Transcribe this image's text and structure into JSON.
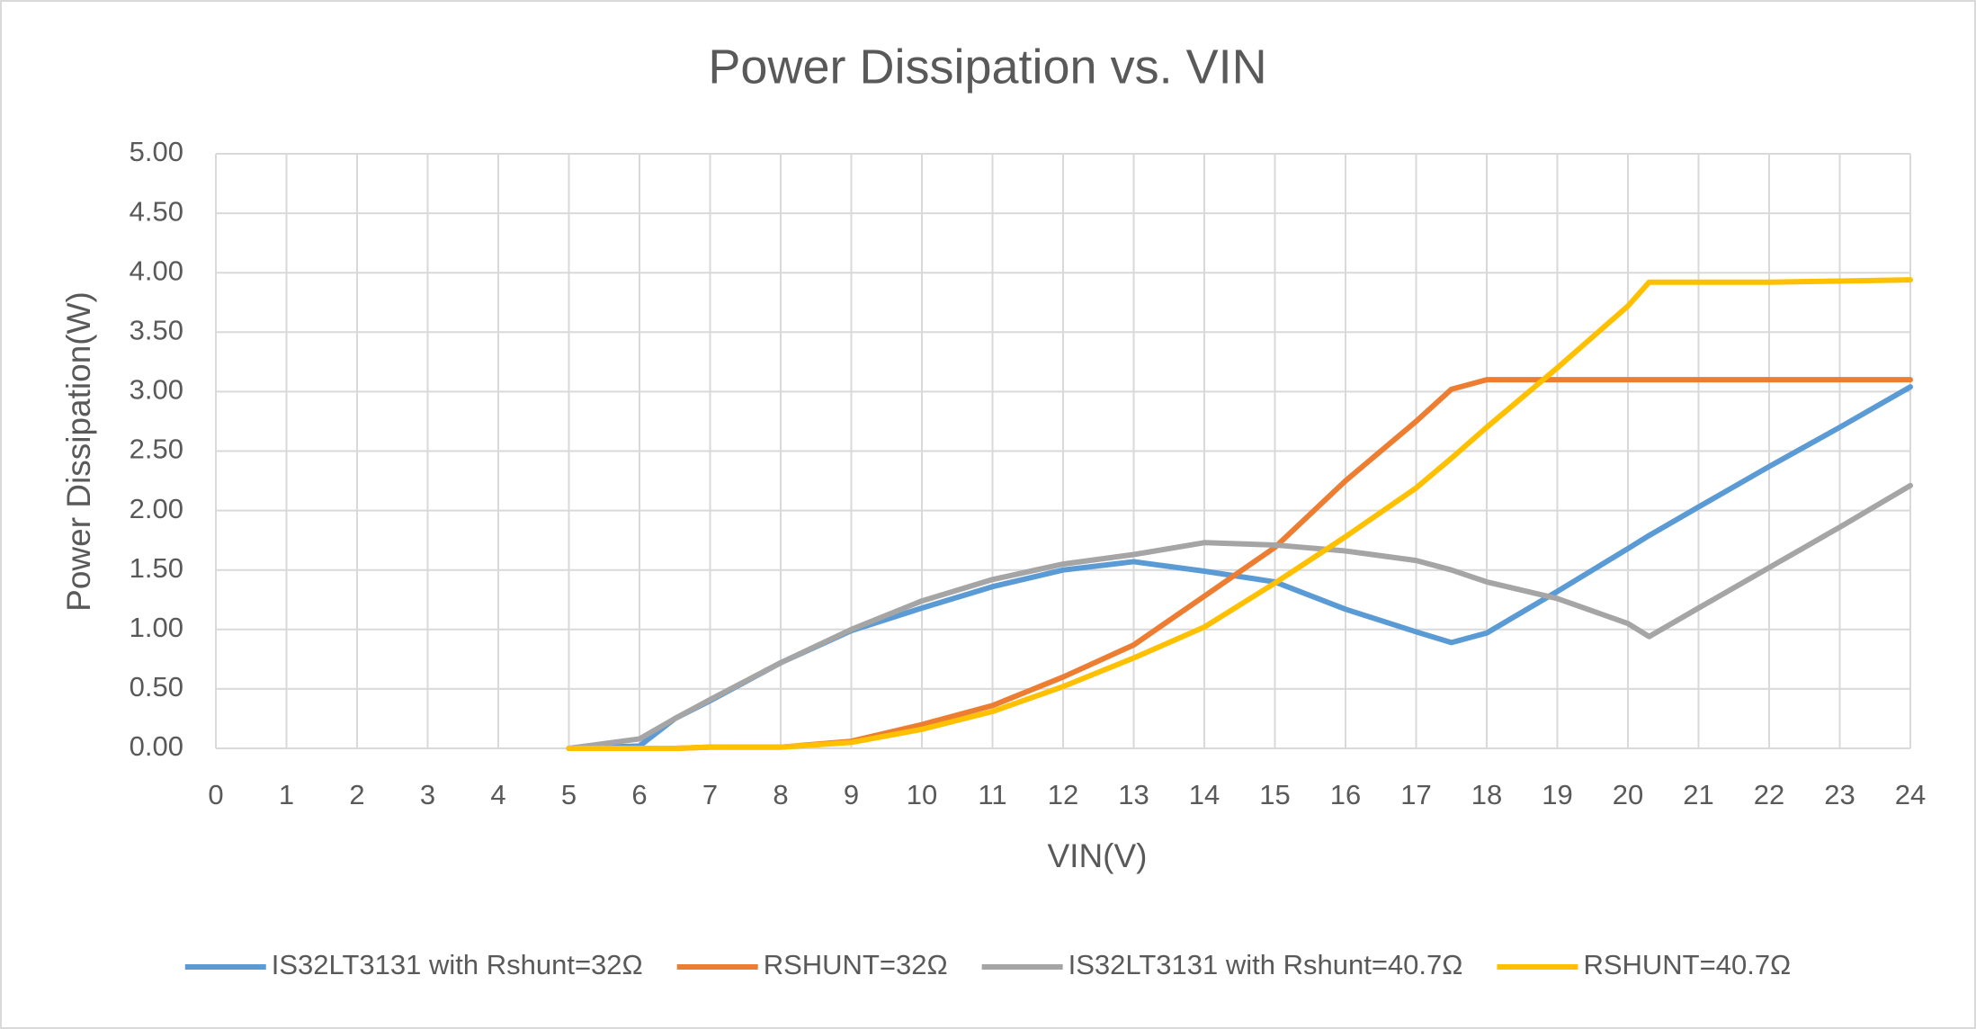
{
  "chart_data": {
    "type": "line",
    "title": "Power Dissipation vs. VIN",
    "x_label": "VIN(V)",
    "y_label": "Power Dissipation(W)",
    "x": [
      5,
      6,
      6.5,
      7,
      8,
      9,
      10,
      11,
      12,
      13,
      14,
      15,
      16,
      17,
      17.5,
      18,
      19,
      20,
      20.3,
      21,
      22,
      23,
      24
    ],
    "series": [
      {
        "name": "IS32LT3131 with Rshunt=32Ω",
        "color": "#5b9bd5",
        "values": [
          0,
          0.02,
          0.25,
          0.4,
          0.72,
          0.99,
          1.18,
          1.36,
          1.5,
          1.57,
          1.49,
          1.4,
          1.17,
          0.98,
          0.89,
          0.97,
          1.32,
          1.68,
          1.79,
          2.03,
          2.37,
          2.7,
          3.04
        ]
      },
      {
        "name": "RSHUNT=32Ω",
        "color": "#ed7d31",
        "values": [
          0,
          0,
          0,
          0.01,
          0.01,
          0.06,
          0.2,
          0.36,
          0.6,
          0.87,
          1.28,
          1.69,
          2.25,
          2.75,
          3.02,
          3.1,
          3.1,
          3.1,
          3.1,
          3.1,
          3.1,
          3.1,
          3.1
        ]
      },
      {
        "name": "IS32LT3131 with Rshunt=40.7Ω",
        "color": "#a5a5a5",
        "values": [
          0,
          0.08,
          0.25,
          0.41,
          0.72,
          1.0,
          1.24,
          1.42,
          1.55,
          1.63,
          1.73,
          1.71,
          1.66,
          1.58,
          1.5,
          1.4,
          1.26,
          1.05,
          0.94,
          1.18,
          1.52,
          1.86,
          2.21
        ]
      },
      {
        "name": "RSHUNT=40.7Ω",
        "color": "#ffc000",
        "values": [
          0,
          0,
          0,
          0.01,
          0.01,
          0.05,
          0.16,
          0.31,
          0.52,
          0.76,
          1.02,
          1.39,
          1.78,
          2.19,
          2.44,
          2.7,
          3.2,
          3.72,
          3.92,
          3.92,
          3.92,
          3.93,
          3.94
        ]
      }
    ],
    "xlim": [
      0,
      24
    ],
    "xticks": [
      0,
      1,
      2,
      3,
      4,
      5,
      6,
      7,
      8,
      9,
      10,
      11,
      12,
      13,
      14,
      15,
      16,
      17,
      18,
      19,
      20,
      21,
      22,
      23,
      24
    ],
    "ylim": [
      0,
      5
    ],
    "yticks": [
      {
        "value": 0,
        "label": "0.00"
      },
      {
        "value": 0.5,
        "label": "0.50"
      },
      {
        "value": 1,
        "label": "1.00"
      },
      {
        "value": 1.5,
        "label": "1.50"
      },
      {
        "value": 2,
        "label": "2.00"
      },
      {
        "value": 2.5,
        "label": "2.50"
      },
      {
        "value": 3,
        "label": "3.00"
      },
      {
        "value": 3.5,
        "label": "3.50"
      },
      {
        "value": 4,
        "label": "4.00"
      },
      {
        "value": 4.5,
        "label": "4.50"
      },
      {
        "value": 5,
        "label": "5.00"
      }
    ],
    "grid": true,
    "legend": "bottom"
  }
}
